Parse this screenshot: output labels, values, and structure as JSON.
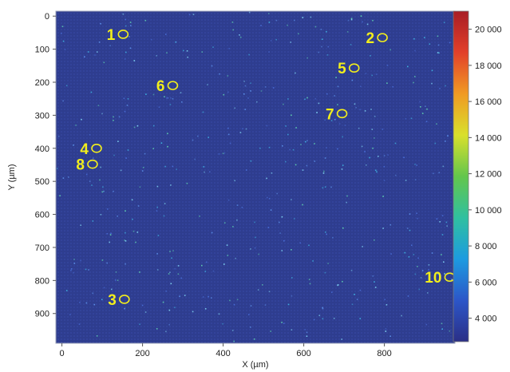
{
  "chart_data": {
    "type": "heatmap",
    "xlabel": "X (µm)",
    "ylabel": "Y (µm)",
    "xlim": [
      -15,
      975
    ],
    "ylim": [
      990,
      -15
    ],
    "x_ticks": [
      0,
      200,
      400,
      600,
      800
    ],
    "y_ticks": [
      0,
      100,
      200,
      300,
      400,
      500,
      600,
      700,
      800,
      900
    ],
    "colorbar": {
      "range": [
        2700,
        21000
      ],
      "ticks": [
        "4 000",
        "6 000",
        "8 000",
        "10 000",
        "12 000",
        "14 000",
        "16 000",
        "18 000",
        "20 000"
      ],
      "tick_values": [
        4000,
        6000,
        8000,
        10000,
        12000,
        14000,
        16000,
        18000,
        20000
      ],
      "colors": [
        "#2b2f86",
        "#2c56c8",
        "#1d9be0",
        "#30c0a0",
        "#63c64c",
        "#d9e02c",
        "#f09a23",
        "#e2402a",
        "#a81d25"
      ]
    },
    "background_color": "#2e3d8f",
    "markers": [
      {
        "label": "1",
        "x": 152,
        "y": 55
      },
      {
        "label": "2",
        "x": 795,
        "y": 65
      },
      {
        "label": "3",
        "x": 155,
        "y": 857
      },
      {
        "label": "4",
        "x": 86,
        "y": 400
      },
      {
        "label": "5",
        "x": 725,
        "y": 157
      },
      {
        "label": "6",
        "x": 275,
        "y": 210
      },
      {
        "label": "7",
        "x": 695,
        "y": 295
      },
      {
        "label": "8",
        "x": 76,
        "y": 448
      },
      {
        "label": "10",
        "x": 962,
        "y": 790
      }
    ]
  }
}
